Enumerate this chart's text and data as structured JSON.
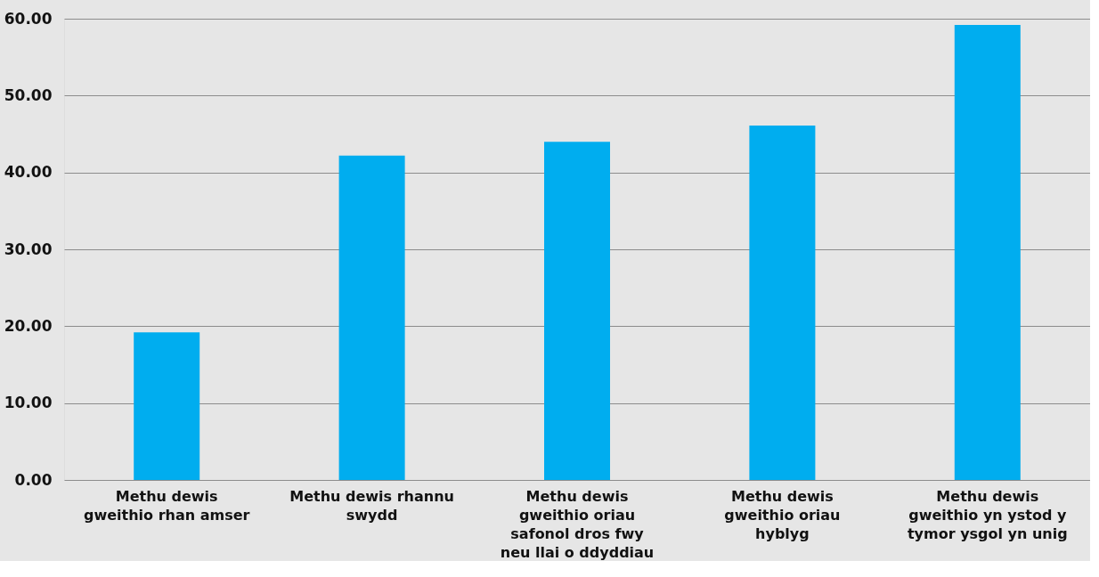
{
  "chart_data": {
    "type": "bar",
    "categories": [
      "Methu dewis gweithio rhan amser",
      "Methu dewis rhannu swydd",
      "Methu dewis gweithio oriau safonol dros fwy neu llai o ddyddiau",
      "Methu dewis gweithio oriau hyblyg",
      "Methu dewis gweithio yn ystod y tymor ysgol yn unig"
    ],
    "values": [
      19.2,
      42.2,
      44.0,
      46.1,
      59.2
    ],
    "color": "#00adef",
    "ylim": [
      0,
      60
    ],
    "yticks": [
      {
        "value": 0,
        "label": "0.00"
      },
      {
        "value": 10,
        "label": "10.00"
      },
      {
        "value": 20,
        "label": "20.00"
      },
      {
        "value": 30,
        "label": "30.00"
      },
      {
        "value": 40,
        "label": "40.00"
      },
      {
        "value": 50,
        "label": "50.00"
      },
      {
        "value": 60,
        "label": "60.00"
      }
    ],
    "grid": "y"
  }
}
